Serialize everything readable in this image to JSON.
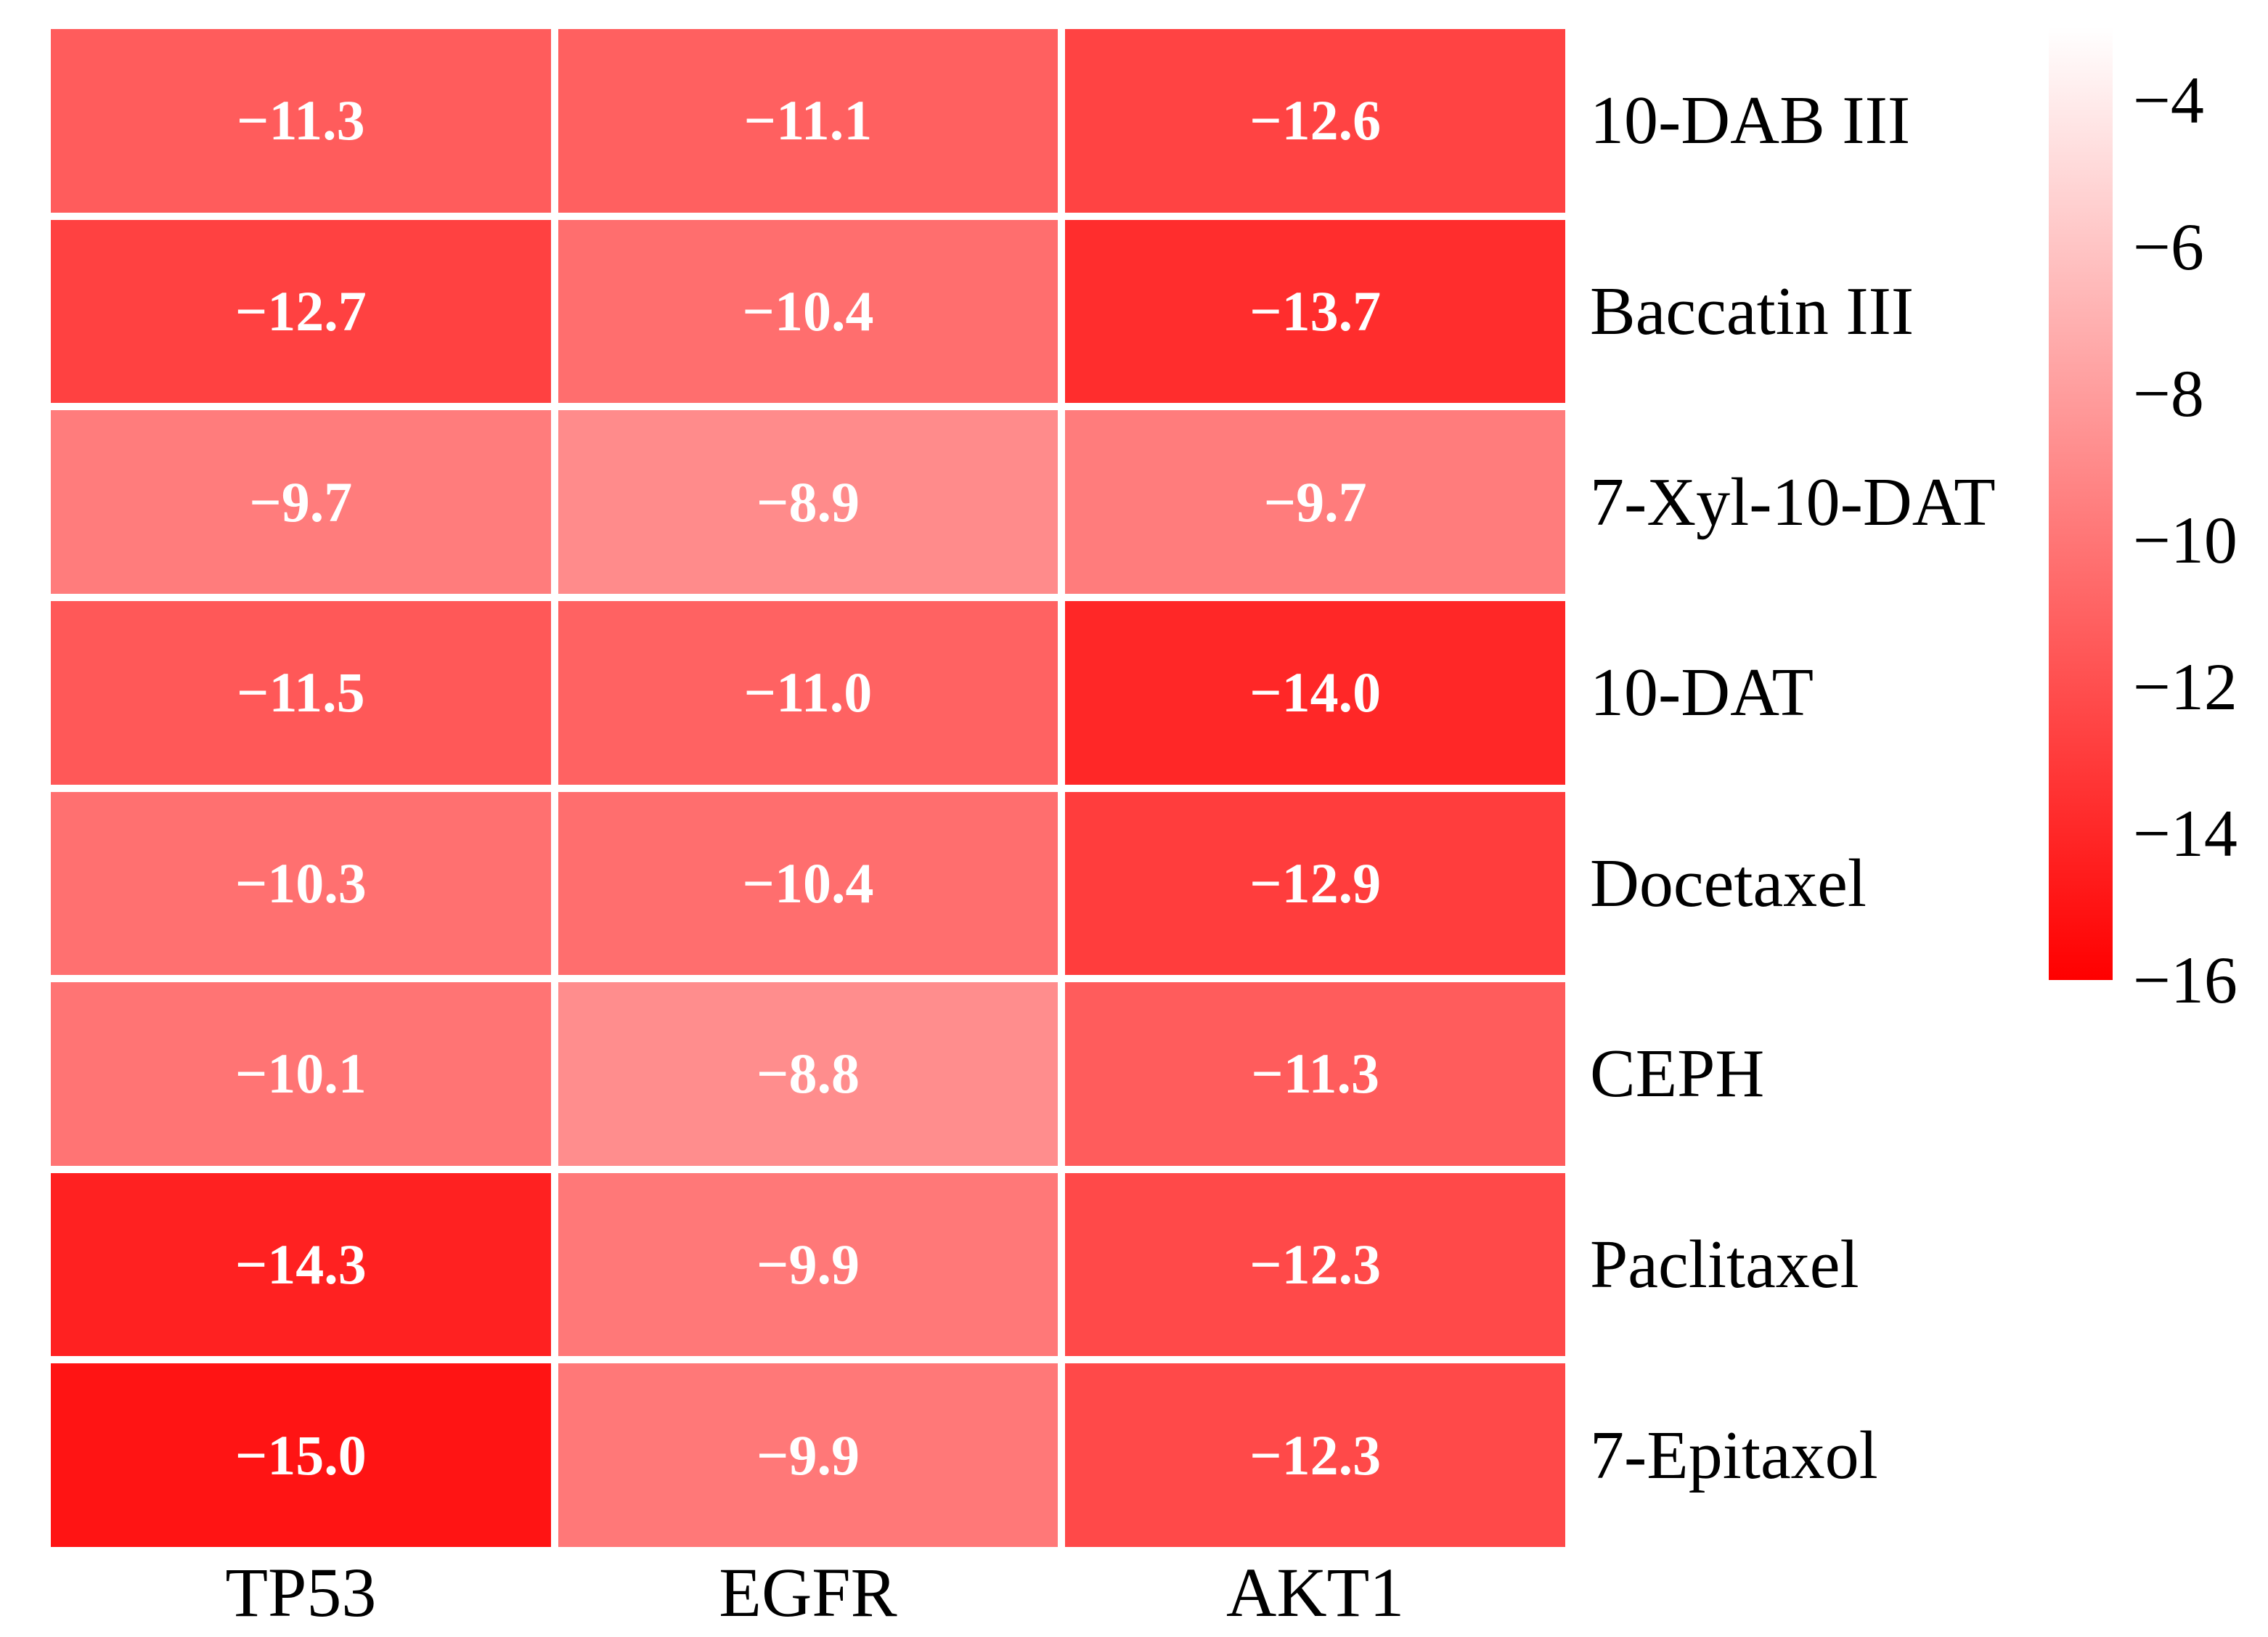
{
  "chart_data": {
    "type": "heatmap",
    "columns": [
      "TP53",
      "EGFR",
      "AKT1"
    ],
    "rows": [
      "10-DAB III",
      "Baccatin III",
      "7-Xyl-10-DAT",
      "10-DAT",
      "Docetaxel",
      "CEPH",
      "Paclitaxel",
      "7-Epitaxol"
    ],
    "values": [
      [
        -11.3,
        -11.1,
        -12.6
      ],
      [
        -12.7,
        -10.4,
        -13.7
      ],
      [
        -9.7,
        -8.9,
        -9.7
      ],
      [
        -11.5,
        -11.0,
        -14.0
      ],
      [
        -10.3,
        -10.4,
        -12.9
      ],
      [
        -10.1,
        -8.8,
        -11.3
      ],
      [
        -14.3,
        -9.9,
        -12.3
      ],
      [
        -15.0,
        -9.9,
        -12.3
      ]
    ],
    "cell_labels": [
      [
        "−11.3",
        "−11.1",
        "−12.6"
      ],
      [
        "−12.7",
        "−10.4",
        "−13.7"
      ],
      [
        "−9.7",
        "−8.9",
        "−9.7"
      ],
      [
        "−11.5",
        "−11.0",
        "−14.0"
      ],
      [
        "−10.3",
        "−10.4",
        "−12.9"
      ],
      [
        "−10.1",
        "−8.8",
        "−11.3"
      ],
      [
        "−14.3",
        "−9.9",
        "−12.3"
      ],
      [
        "−15.0",
        "−9.9",
        "−12.3"
      ]
    ],
    "colorbar": {
      "orientation": "vertical",
      "position": "right",
      "tick_values": [
        -4,
        -6,
        -8,
        -10,
        -12,
        -14,
        -16
      ],
      "tick_labels": [
        "−4",
        "−6",
        "−8",
        "−10",
        "−12",
        "−14",
        "−16"
      ],
      "scale_top_value": -3,
      "scale_bottom_value": -16,
      "color_at_top": "#ffffff",
      "color_at_bottom": "#ff0000"
    },
    "grid_on": true,
    "gridline_color": "#ffffff",
    "cell_text_color": "#ffffff",
    "label_text_color": "#000000",
    "background_color": "#ffffff",
    "legend_position": "none",
    "title": "",
    "xlabel": "",
    "ylabel": ""
  }
}
